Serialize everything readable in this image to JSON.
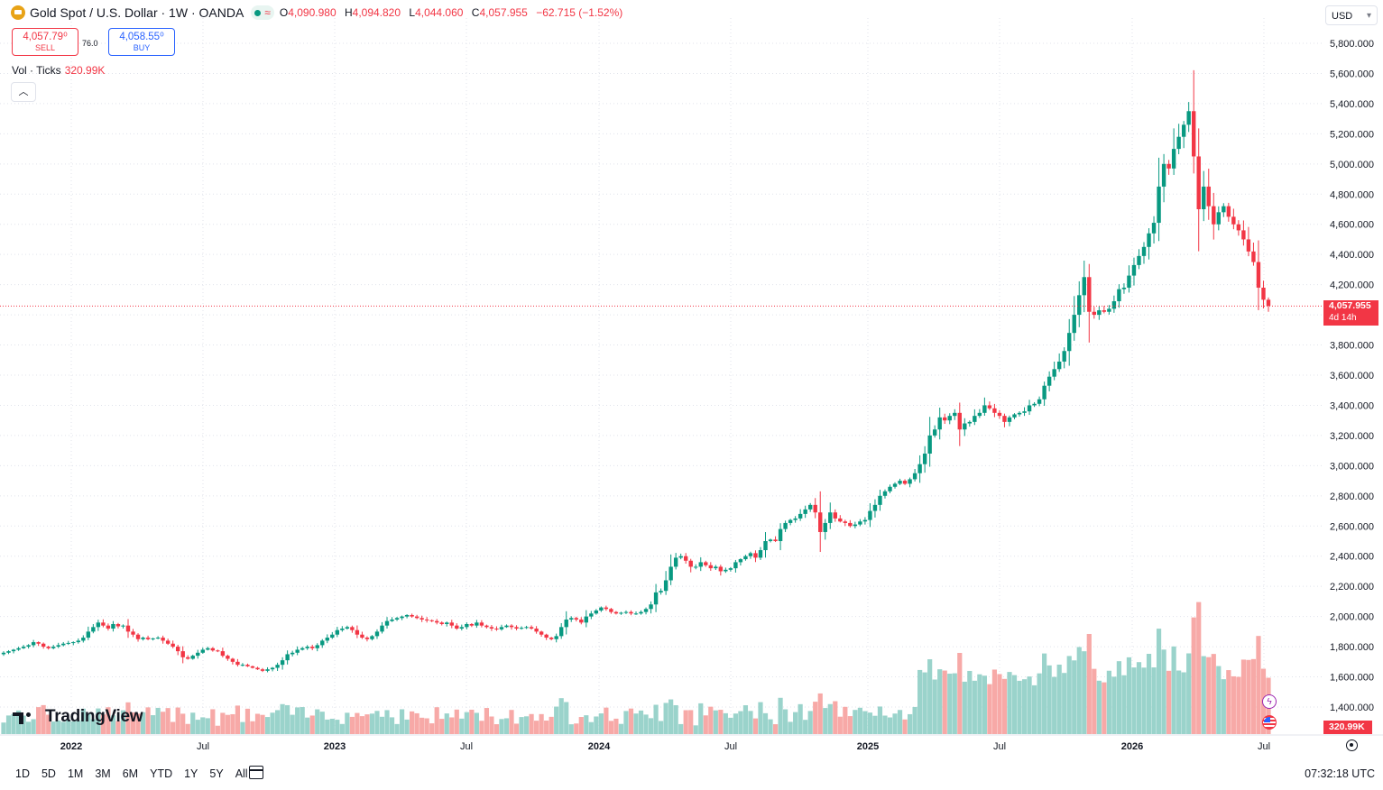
{
  "header": {
    "symbol": "Gold Spot / U.S. Dollar · 1W · OANDA",
    "ohlc": {
      "o_label": "O",
      "o": "4,090.980",
      "h_label": "H",
      "h": "4,094.820",
      "l_label": "L",
      "l": "4,044.060",
      "c_label": "C",
      "c": "4,057.955",
      "change": "−62.715 (−1.52%)"
    }
  },
  "trade": {
    "sell_price": "4,057.79⁰",
    "sell_label": "SELL",
    "buy_price": "4,058.55⁰",
    "buy_label": "BUY",
    "spread": "76.0"
  },
  "volume_legend": {
    "label": "Vol · Ticks",
    "value": "320.99K"
  },
  "collapse_icon": "chevron-up-icon",
  "currency": "USD",
  "last_price_tag": {
    "price": "4,057.955",
    "countdown": "4d 14h"
  },
  "volume_tag": "320.99K",
  "brand": "TradingView",
  "ranges": [
    "1D",
    "5D",
    "1M",
    "3M",
    "6M",
    "YTD",
    "1Y",
    "5Y",
    "All"
  ],
  "clock": "07:32:18 UTC",
  "colors": {
    "up": "#089981",
    "down": "#f23645",
    "vol_up": "#9ad3cb",
    "vol_down": "#f7a9a7",
    "grid": "#e0e3eb"
  },
  "chart_data": {
    "type": "candlestick",
    "interval": "1W",
    "x_ticks": [
      "2022",
      "Jul",
      "2023",
      "Jul",
      "2024",
      "Jul",
      "2025",
      "Jul",
      "2026",
      "Jul"
    ],
    "y_ticks": [
      5800,
      5600,
      5400,
      5200,
      5000,
      4800,
      4600,
      4400,
      4200,
      4000,
      3800,
      3600,
      3400,
      3200,
      3000,
      2800,
      2600,
      2400,
      2200,
      2000,
      1800,
      1600,
      1400
    ],
    "y_tick_labels": [
      "5,800.000",
      "5,600.000",
      "5,400.000",
      "5,200.000",
      "5,000.000",
      "4,800.000",
      "4,600.000",
      "4,400.000",
      "4,200.000",
      "4,000.000",
      "3,800.000",
      "3,600.000",
      "3,400.000",
      "3,200.000",
      "3,000.000",
      "2,800.000",
      "2,600.000",
      "2,400.000",
      "2,200.000",
      "2,000.000",
      "1,800.000",
      "1,600.000",
      "1,400.000"
    ],
    "ylim": [
      1300,
      5900
    ],
    "last_price": 4057.955,
    "weekly_closes": [
      1760,
      1770,
      1780,
      1790,
      1800,
      1810,
      1830,
      1820,
      1800,
      1790,
      1800,
      1810,
      1820,
      1825,
      1830,
      1840,
      1860,
      1900,
      1930,
      1960,
      1940,
      1920,
      1950,
      1935,
      1940,
      1900,
      1880,
      1850,
      1860,
      1850,
      1855,
      1860,
      1840,
      1820,
      1800,
      1770,
      1730,
      1720,
      1740,
      1760,
      1780,
      1790,
      1775,
      1770,
      1740,
      1720,
      1700,
      1680,
      1680,
      1670,
      1660,
      1650,
      1640,
      1650,
      1660,
      1680,
      1710,
      1750,
      1760,
      1780,
      1790,
      1800,
      1790,
      1810,
      1840,
      1860,
      1880,
      1910,
      1920,
      1930,
      1910,
      1880,
      1860,
      1850,
      1870,
      1900,
      1940,
      1970,
      1980,
      1990,
      2000,
      2010,
      2000,
      1990,
      1980,
      1975,
      1970,
      1960,
      1950,
      1960,
      1940,
      1920,
      1930,
      1950,
      1940,
      1960,
      1940,
      1930,
      1920,
      1915,
      1930,
      1940,
      1930,
      1920,
      1925,
      1930,
      1920,
      1900,
      1880,
      1860,
      1850,
      1870,
      1930,
      1980,
      1990,
      1980,
      1960,
      2000,
      2020,
      2040,
      2060,
      2050,
      2030,
      2020,
      2025,
      2030,
      2020,
      2020,
      2030,
      2050,
      2080,
      2160,
      2170,
      2240,
      2330,
      2390,
      2400,
      2370,
      2330,
      2330,
      2360,
      2340,
      2320,
      2330,
      2300,
      2310,
      2320,
      2360,
      2380,
      2400,
      2420,
      2390,
      2440,
      2500,
      2510,
      2500,
      2580,
      2620,
      2640,
      2650,
      2680,
      2710,
      2740,
      2690,
      2560,
      2620,
      2690,
      2650,
      2630,
      2620,
      2600,
      2610,
      2630,
      2640,
      2700,
      2740,
      2800,
      2830,
      2860,
      2880,
      2900,
      2880,
      2910,
      2950,
      3010,
      3080,
      3200,
      3240,
      3320,
      3300,
      3330,
      3350,
      3240,
      3280,
      3290,
      3330,
      3350,
      3400,
      3380,
      3350,
      3330,
      3290,
      3320,
      3340,
      3350,
      3360,
      3400,
      3410,
      3440,
      3530,
      3590,
      3640,
      3690,
      3760,
      3880,
      4000,
      4130,
      4250,
      4020,
      4000,
      4030,
      4020,
      4040,
      4090,
      4170,
      4180,
      4260,
      4330,
      4390,
      4450,
      4540,
      4610,
      4850,
      5000,
      4970,
      5100,
      5180,
      5260,
      5350,
      5050,
      4700,
      4850,
      4720,
      4600,
      4680,
      4720,
      4650,
      4600,
      4560,
      4500,
      4420,
      4350,
      4180,
      4100,
      4060
    ]
  }
}
